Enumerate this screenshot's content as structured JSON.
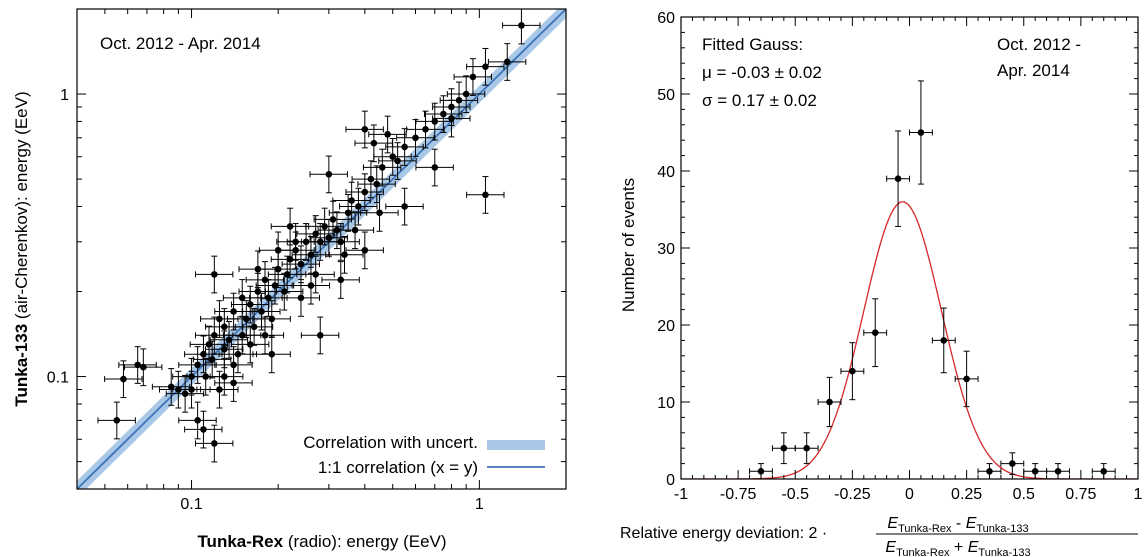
{
  "chart_data": [
    {
      "type": "scatter",
      "title": "",
      "annotation": "Oct. 2012 - Apr. 2014",
      "xlabel_bold": "Tunka-Rex",
      "xlabel_rest": " (radio): energy (EeV)",
      "ylabel_bold": "Tunka-133",
      "ylabel_rest": " (air-Cherenkov): energy (EeV)",
      "x_scale": "log",
      "y_scale": "log",
      "xlim": [
        0.04,
        2.0
      ],
      "ylim": [
        0.04,
        2.0
      ],
      "xtick_labels": [
        "0.1",
        "1"
      ],
      "ytick_labels": [
        "0.1",
        "1"
      ],
      "legend": {
        "placement": "bottom-right",
        "entries": [
          "Correlation with uncert.",
          "1:1 correlation (x = y)"
        ],
        "band_color": "#a9c8e8",
        "line_color": "#3d74b8"
      },
      "points": [
        {
          "x": 0.055,
          "y": 0.07
        },
        {
          "x": 0.058,
          "y": 0.098
        },
        {
          "x": 0.065,
          "y": 0.11
        },
        {
          "x": 0.068,
          "y": 0.108
        },
        {
          "x": 0.085,
          "y": 0.092
        },
        {
          "x": 0.09,
          "y": 0.09
        },
        {
          "x": 0.095,
          "y": 0.087
        },
        {
          "x": 0.1,
          "y": 0.09
        },
        {
          "x": 0.105,
          "y": 0.07
        },
        {
          "x": 0.11,
          "y": 0.065
        },
        {
          "x": 0.12,
          "y": 0.058
        },
        {
          "x": 0.1,
          "y": 0.1
        },
        {
          "x": 0.105,
          "y": 0.11
        },
        {
          "x": 0.11,
          "y": 0.12
        },
        {
          "x": 0.112,
          "y": 0.1
        },
        {
          "x": 0.115,
          "y": 0.13
        },
        {
          "x": 0.118,
          "y": 0.115
        },
        {
          "x": 0.12,
          "y": 0.14
        },
        {
          "x": 0.125,
          "y": 0.16
        },
        {
          "x": 0.13,
          "y": 0.125
        },
        {
          "x": 0.13,
          "y": 0.15
        },
        {
          "x": 0.135,
          "y": 0.135
        },
        {
          "x": 0.14,
          "y": 0.17
        },
        {
          "x": 0.145,
          "y": 0.12
        },
        {
          "x": 0.15,
          "y": 0.14
        },
        {
          "x": 0.15,
          "y": 0.19
        },
        {
          "x": 0.155,
          "y": 0.16
        },
        {
          "x": 0.16,
          "y": 0.18
        },
        {
          "x": 0.165,
          "y": 0.15
        },
        {
          "x": 0.17,
          "y": 0.2
        },
        {
          "x": 0.175,
          "y": 0.17
        },
        {
          "x": 0.18,
          "y": 0.22
        },
        {
          "x": 0.185,
          "y": 0.19
        },
        {
          "x": 0.19,
          "y": 0.16
        },
        {
          "x": 0.195,
          "y": 0.21
        },
        {
          "x": 0.2,
          "y": 0.24
        },
        {
          "x": 0.21,
          "y": 0.2
        },
        {
          "x": 0.215,
          "y": 0.23
        },
        {
          "x": 0.22,
          "y": 0.26
        },
        {
          "x": 0.23,
          "y": 0.28
        },
        {
          "x": 0.24,
          "y": 0.25
        },
        {
          "x": 0.25,
          "y": 0.3
        },
        {
          "x": 0.26,
          "y": 0.27
        },
        {
          "x": 0.27,
          "y": 0.32
        },
        {
          "x": 0.28,
          "y": 0.3
        },
        {
          "x": 0.29,
          "y": 0.34
        },
        {
          "x": 0.3,
          "y": 0.31
        },
        {
          "x": 0.31,
          "y": 0.36
        },
        {
          "x": 0.32,
          "y": 0.33
        },
        {
          "x": 0.33,
          "y": 0.3
        },
        {
          "x": 0.35,
          "y": 0.38
        },
        {
          "x": 0.36,
          "y": 0.42
        },
        {
          "x": 0.38,
          "y": 0.4
        },
        {
          "x": 0.4,
          "y": 0.45
        },
        {
          "x": 0.42,
          "y": 0.5
        },
        {
          "x": 0.44,
          "y": 0.48
        },
        {
          "x": 0.46,
          "y": 0.55
        },
        {
          "x": 0.5,
          "y": 0.6
        },
        {
          "x": 0.52,
          "y": 0.58
        },
        {
          "x": 0.55,
          "y": 0.65
        },
        {
          "x": 0.6,
          "y": 0.7
        },
        {
          "x": 0.65,
          "y": 0.75
        },
        {
          "x": 0.7,
          "y": 0.8
        },
        {
          "x": 0.75,
          "y": 0.85
        },
        {
          "x": 0.8,
          "y": 0.9
        },
        {
          "x": 0.85,
          "y": 0.95
        },
        {
          "x": 0.9,
          "y": 1.0
        },
        {
          "x": 0.95,
          "y": 1.15
        },
        {
          "x": 1.05,
          "y": 1.25
        },
        {
          "x": 1.25,
          "y": 1.3
        },
        {
          "x": 1.4,
          "y": 1.75
        },
        {
          "x": 0.3,
          "y": 0.52
        },
        {
          "x": 0.22,
          "y": 0.34
        },
        {
          "x": 0.17,
          "y": 0.24
        },
        {
          "x": 0.12,
          "y": 0.23
        },
        {
          "x": 0.28,
          "y": 0.14
        },
        {
          "x": 0.33,
          "y": 0.22
        },
        {
          "x": 0.4,
          "y": 0.28
        },
        {
          "x": 0.7,
          "y": 0.55
        },
        {
          "x": 0.55,
          "y": 0.4
        },
        {
          "x": 1.05,
          "y": 0.44
        },
        {
          "x": 0.48,
          "y": 0.72
        },
        {
          "x": 0.4,
          "y": 0.75
        },
        {
          "x": 0.43,
          "y": 0.67
        },
        {
          "x": 0.8,
          "y": 0.82
        },
        {
          "x": 0.14,
          "y": 0.11
        },
        {
          "x": 0.16,
          "y": 0.13
        },
        {
          "x": 0.18,
          "y": 0.14
        },
        {
          "x": 0.19,
          "y": 0.12
        },
        {
          "x": 0.24,
          "y": 0.19
        },
        {
          "x": 0.26,
          "y": 0.21
        },
        {
          "x": 0.27,
          "y": 0.23
        },
        {
          "x": 0.13,
          "y": 0.1
        },
        {
          "x": 0.125,
          "y": 0.09
        },
        {
          "x": 0.14,
          "y": 0.095
        },
        {
          "x": 0.2,
          "y": 0.28
        },
        {
          "x": 0.23,
          "y": 0.3
        },
        {
          "x": 0.34,
          "y": 0.27
        },
        {
          "x": 0.37,
          "y": 0.33
        },
        {
          "x": 0.45,
          "y": 0.38
        }
      ]
    },
    {
      "type": "scatter",
      "title": "",
      "annotation_lines": [
        "Fitted Gauss:",
        "μ = -0.03 ± 0.02",
        "σ =  0.17 ± 0.02"
      ],
      "annotation_right_lines": [
        "Oct. 2012 -",
        "Apr. 2014"
      ],
      "ylabel": "Number of events",
      "xlabel_prefix": "Relative energy deviation: 2 ·",
      "xlabel_num_a": "E",
      "xlabel_num_a_sub": "Tunka-Rex",
      "xlabel_num_op": " - ",
      "xlabel_num_b": "E",
      "xlabel_num_b_sub": "Tunka-133",
      "xlabel_den_a": "E",
      "xlabel_den_a_sub": "Tunka-Rex",
      "xlabel_den_op": " + ",
      "xlabel_den_b": "E",
      "xlabel_den_b_sub": "Tunka-133",
      "xlim": [
        -1,
        1
      ],
      "ylim": [
        0,
        60
      ],
      "xtick_labels": [
        "-1",
        "-0.75",
        "-0.5",
        "-0.25",
        "0",
        "0.25",
        "0.5",
        "0.75",
        "1"
      ],
      "ytick_labels": [
        "0",
        "10",
        "20",
        "30",
        "40",
        "50",
        "60"
      ],
      "gauss": {
        "mu": -0.03,
        "sigma": 0.17,
        "amplitude": 36,
        "color": "#d62728"
      },
      "points": [
        {
          "x": -0.65,
          "y": 1,
          "err": 1
        },
        {
          "x": -0.55,
          "y": 4,
          "err": 2
        },
        {
          "x": -0.45,
          "y": 4,
          "err": 2
        },
        {
          "x": -0.35,
          "y": 10,
          "err": 3.2
        },
        {
          "x": -0.25,
          "y": 14,
          "err": 3.7
        },
        {
          "x": -0.15,
          "y": 19,
          "err": 4.4
        },
        {
          "x": -0.05,
          "y": 39,
          "err": 6.2
        },
        {
          "x": 0.05,
          "y": 45,
          "err": 6.7
        },
        {
          "x": 0.15,
          "y": 18,
          "err": 4.2
        },
        {
          "x": 0.25,
          "y": 13,
          "err": 3.6
        },
        {
          "x": 0.35,
          "y": 1,
          "err": 1
        },
        {
          "x": 0.45,
          "y": 2,
          "err": 1.4
        },
        {
          "x": 0.55,
          "y": 1,
          "err": 1
        },
        {
          "x": 0.65,
          "y": 1,
          "err": 1
        },
        {
          "x": 0.85,
          "y": 1,
          "err": 1
        }
      ]
    }
  ]
}
